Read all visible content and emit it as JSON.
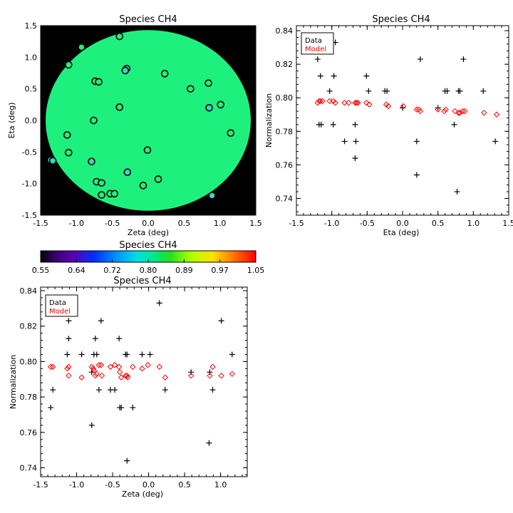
{
  "chart_data": [
    {
      "id": "map",
      "type": "scatter",
      "title": "Species CH4",
      "xlabel": "Zeta (deg)",
      "ylabel": "Eta (deg)",
      "xlim": [
        -1.5,
        1.5
      ],
      "ylim": [
        -1.5,
        1.5
      ],
      "xticks": [
        -1.5,
        -1.0,
        -0.5,
        0.0,
        0.5,
        1.0,
        1.5
      ],
      "yticks": [
        -1.5,
        -1.0,
        -0.5,
        0.0,
        0.5,
        1.0,
        1.5
      ],
      "tick_labels_x": [
        "-1.5",
        "-1.0",
        "-0.5",
        "0.0",
        "0.5",
        "1.0",
        "1.5"
      ],
      "tick_labels_y": [
        "-1.5",
        "-1.0",
        "-0.5",
        "0.0",
        "0.5",
        "1.0",
        "1.5"
      ],
      "background_color": "#000000",
      "disk_color": "#1ef07e",
      "disk_radius": 1.43,
      "points": [
        {
          "x": -0.4,
          "y": 1.33,
          "c": "#1ef07e"
        },
        {
          "x": -0.93,
          "y": 1.16,
          "c": "#1ef07e"
        },
        {
          "x": -1.11,
          "y": 0.88,
          "c": "#1ef07e"
        },
        {
          "x": -0.3,
          "y": 0.82,
          "c": "#32d8c8"
        },
        {
          "x": -0.32,
          "y": 0.79,
          "c": "#32d8c8"
        },
        {
          "x": 0.23,
          "y": 0.74,
          "c": "#1ef07e"
        },
        {
          "x": -0.74,
          "y": 0.62,
          "c": "#1ef07e"
        },
        {
          "x": -0.69,
          "y": 0.61,
          "c": "#1ef07e"
        },
        {
          "x": 0.84,
          "y": 0.59,
          "c": "#1ef07e"
        },
        {
          "x": 0.59,
          "y": 0.5,
          "c": "#1ef07e"
        },
        {
          "x": 1.01,
          "y": 0.25,
          "c": "#1ef07e"
        },
        {
          "x": -0.4,
          "y": 0.21,
          "c": "#1ef07e"
        },
        {
          "x": 0.85,
          "y": 0.2,
          "c": "#32d8c8"
        },
        {
          "x": -0.76,
          "y": 0.0,
          "c": "#1ef07e"
        },
        {
          "x": 1.15,
          "y": -0.2,
          "c": "#1ef07e"
        },
        {
          "x": -1.13,
          "y": -0.23,
          "c": "#1ef07e"
        },
        {
          "x": -0.01,
          "y": -0.47,
          "c": "#1ef07e"
        },
        {
          "x": -1.11,
          "y": -0.51,
          "c": "#1ef07e"
        },
        {
          "x": -1.36,
          "y": -0.63,
          "c": "#32d8c8"
        },
        {
          "x": -1.33,
          "y": -0.64,
          "c": "#32d8c8"
        },
        {
          "x": -0.79,
          "y": -0.65,
          "c": "#32d8c8"
        },
        {
          "x": -0.29,
          "y": -0.82,
          "c": "#32d8c8"
        },
        {
          "x": 0.14,
          "y": -0.93,
          "c": "#1ef07e"
        },
        {
          "x": -0.72,
          "y": -0.97,
          "c": "#1ef07e"
        },
        {
          "x": -0.65,
          "y": -0.99,
          "c": "#1ef07e"
        },
        {
          "x": -0.07,
          "y": -1.03,
          "c": "#1ef07e"
        },
        {
          "x": -0.65,
          "y": -1.18,
          "c": "#1ef07e"
        },
        {
          "x": -0.53,
          "y": -1.16,
          "c": "#1ef07e"
        },
        {
          "x": -0.47,
          "y": -1.16,
          "c": "#1ef07e"
        },
        {
          "x": 0.89,
          "y": -1.19,
          "c": "#32d8c8"
        }
      ]
    },
    {
      "id": "eta",
      "type": "scatter",
      "title": "Species CH4",
      "xlabel": "Eta (deg)",
      "ylabel": "Normalization",
      "xlim": [
        -1.5,
        1.5
      ],
      "ylim": [
        0.73,
        0.843
      ],
      "xticks": [
        -1.5,
        -1.0,
        -0.5,
        0.0,
        0.5,
        1.0,
        1.5
      ],
      "yticks": [
        0.74,
        0.76,
        0.78,
        0.8,
        0.82,
        0.84
      ],
      "tick_labels_x": [
        "-1.5",
        "-1.0",
        "-0.5",
        "0.0",
        "0.5",
        "1.0",
        "1.5"
      ],
      "tick_labels_y": [
        "0.74",
        "0.76",
        "0.78",
        "0.80",
        "0.82",
        "0.84"
      ],
      "legend": {
        "placement": "top-left",
        "entries": [
          {
            "label": "Data",
            "color": "#000000"
          },
          {
            "label": "Model",
            "color": "#ff0000"
          }
        ]
      },
      "series": [
        {
          "name": "Data",
          "marker": "plus",
          "color": "#000000",
          "points": [
            [
              -1.2,
              0.823
            ],
            [
              -1.16,
              0.813
            ],
            [
              -1.18,
              0.784
            ],
            [
              -1.15,
              0.784
            ],
            [
              -1.03,
              0.804
            ],
            [
              -0.97,
              0.813
            ],
            [
              -0.98,
              0.784
            ],
            [
              -0.82,
              0.774
            ],
            [
              -0.67,
              0.784
            ],
            [
              -0.66,
              0.774
            ],
            [
              -0.67,
              0.764
            ],
            [
              -0.51,
              0.813
            ],
            [
              -0.48,
              0.804
            ],
            [
              -0.25,
              0.804
            ],
            [
              -0.22,
              0.804
            ],
            [
              0.0,
              0.794
            ],
            [
              0.2,
              0.774
            ],
            [
              0.2,
              0.754
            ],
            [
              0.25,
              0.823
            ],
            [
              0.5,
              0.794
            ],
            [
              0.6,
              0.804
            ],
            [
              0.63,
              0.804
            ],
            [
              0.73,
              0.784
            ],
            [
              0.77,
              0.744
            ],
            [
              0.79,
              0.804
            ],
            [
              0.81,
              0.804
            ],
            [
              0.86,
              0.823
            ],
            [
              1.14,
              0.804
            ],
            [
              1.31,
              0.774
            ],
            [
              -0.95,
              0.833
            ]
          ]
        },
        {
          "name": "Model",
          "marker": "diamond",
          "color": "#ff0000",
          "points": [
            [
              -1.2,
              0.797
            ],
            [
              -1.18,
              0.798
            ],
            [
              -1.16,
              0.798
            ],
            [
              -1.13,
              0.798
            ],
            [
              -1.03,
              0.798
            ],
            [
              -0.98,
              0.798
            ],
            [
              -0.95,
              0.797
            ],
            [
              -0.82,
              0.797
            ],
            [
              -0.67,
              0.797
            ],
            [
              -0.65,
              0.797
            ],
            [
              -0.63,
              0.797
            ],
            [
              -0.51,
              0.797
            ],
            [
              -0.47,
              0.796
            ],
            [
              -0.23,
              0.796
            ],
            [
              -0.2,
              0.795
            ],
            [
              0.01,
              0.795
            ],
            [
              0.2,
              0.793
            ],
            [
              0.23,
              0.793
            ],
            [
              0.25,
              0.792
            ],
            [
              0.5,
              0.793
            ],
            [
              0.59,
              0.792
            ],
            [
              0.61,
              0.793
            ],
            [
              0.74,
              0.792
            ],
            [
              0.79,
              0.791
            ],
            [
              0.81,
              0.791
            ],
            [
              0.85,
              0.792
            ],
            [
              0.88,
              0.792
            ],
            [
              1.15,
              0.791
            ],
            [
              1.33,
              0.79
            ],
            [
              -0.76,
              0.797
            ]
          ]
        }
      ]
    },
    {
      "id": "colorbar",
      "type": "heatmap",
      "title": "Species CH4",
      "range": [
        0.55,
        1.05
      ],
      "tick_labels": [
        "0.55",
        "0.64",
        "0.72",
        "0.80",
        "0.89",
        "0.97",
        "1.05"
      ]
    },
    {
      "id": "zeta",
      "type": "scatter",
      "title": "Species CH4",
      "xlabel": "Zeta (deg)",
      "ylabel": "Normalization",
      "xlim": [
        -1.5,
        1.37
      ],
      "ylim": [
        0.735,
        0.842
      ],
      "xticks": [
        -1.5,
        -1.0,
        -0.5,
        0.0,
        0.5,
        1.0
      ],
      "yticks": [
        0.74,
        0.76,
        0.78,
        0.8,
        0.82,
        0.84
      ],
      "tick_labels_x": [
        "-1.5",
        "-1.0",
        "-0.5",
        "0.0",
        "0.5",
        "1.0"
      ],
      "tick_labels_y": [
        "0.74",
        "0.76",
        "0.78",
        "0.80",
        "0.82",
        "0.84"
      ],
      "legend": {
        "placement": "top-left",
        "entries": [
          {
            "label": "Data",
            "color": "#000000"
          },
          {
            "label": "Model",
            "color": "#ff0000"
          }
        ]
      },
      "series": [
        {
          "name": "Data",
          "marker": "plus",
          "color": "#000000",
          "points": [
            [
              -1.36,
              0.774
            ],
            [
              -1.33,
              0.784
            ],
            [
              -1.13,
              0.804
            ],
            [
              -1.11,
              0.823
            ],
            [
              -1.11,
              0.813
            ],
            [
              -0.93,
              0.804
            ],
            [
              -0.79,
              0.794
            ],
            [
              -0.76,
              0.804
            ],
            [
              -0.74,
              0.813
            ],
            [
              -0.72,
              0.804
            ],
            [
              -0.69,
              0.784
            ],
            [
              -0.66,
              0.823
            ],
            [
              -0.79,
              0.764
            ],
            [
              -0.53,
              0.784
            ],
            [
              -0.47,
              0.784
            ],
            [
              -0.41,
              0.813
            ],
            [
              -0.4,
              0.774
            ],
            [
              -0.38,
              0.774
            ],
            [
              -0.32,
              0.804
            ],
            [
              -0.3,
              0.804
            ],
            [
              -0.3,
              0.744
            ],
            [
              -0.22,
              0.774
            ],
            [
              -0.09,
              0.804
            ],
            [
              0.02,
              0.804
            ],
            [
              0.15,
              0.833
            ],
            [
              0.23,
              0.784
            ],
            [
              0.59,
              0.794
            ],
            [
              0.84,
              0.754
            ],
            [
              0.85,
              0.794
            ],
            [
              0.89,
              0.784
            ],
            [
              1.01,
              0.823
            ],
            [
              1.16,
              0.804
            ]
          ]
        },
        {
          "name": "Model",
          "marker": "diamond",
          "color": "#ff0000",
          "points": [
            [
              -1.36,
              0.797
            ],
            [
              -1.33,
              0.797
            ],
            [
              -1.13,
              0.796
            ],
            [
              -1.11,
              0.797
            ],
            [
              -1.11,
              0.792
            ],
            [
              -0.93,
              0.791
            ],
            [
              -0.79,
              0.797
            ],
            [
              -0.77,
              0.796
            ],
            [
              -0.76,
              0.795
            ],
            [
              -0.74,
              0.792
            ],
            [
              -0.72,
              0.793
            ],
            [
              -0.69,
              0.798
            ],
            [
              -0.66,
              0.798
            ],
            [
              -0.65,
              0.792
            ],
            [
              -0.53,
              0.797
            ],
            [
              -0.47,
              0.798
            ],
            [
              -0.41,
              0.797
            ],
            [
              -0.4,
              0.794
            ],
            [
              -0.38,
              0.791
            ],
            [
              -0.32,
              0.792
            ],
            [
              -0.3,
              0.792
            ],
            [
              -0.29,
              0.791
            ],
            [
              -0.22,
              0.797
            ],
            [
              -0.09,
              0.796
            ],
            [
              -0.01,
              0.798
            ],
            [
              0.15,
              0.797
            ],
            [
              0.23,
              0.791
            ],
            [
              0.59,
              0.792
            ],
            [
              0.85,
              0.792
            ],
            [
              0.89,
              0.797
            ],
            [
              1.01,
              0.792
            ],
            [
              1.16,
              0.793
            ]
          ]
        }
      ]
    }
  ]
}
